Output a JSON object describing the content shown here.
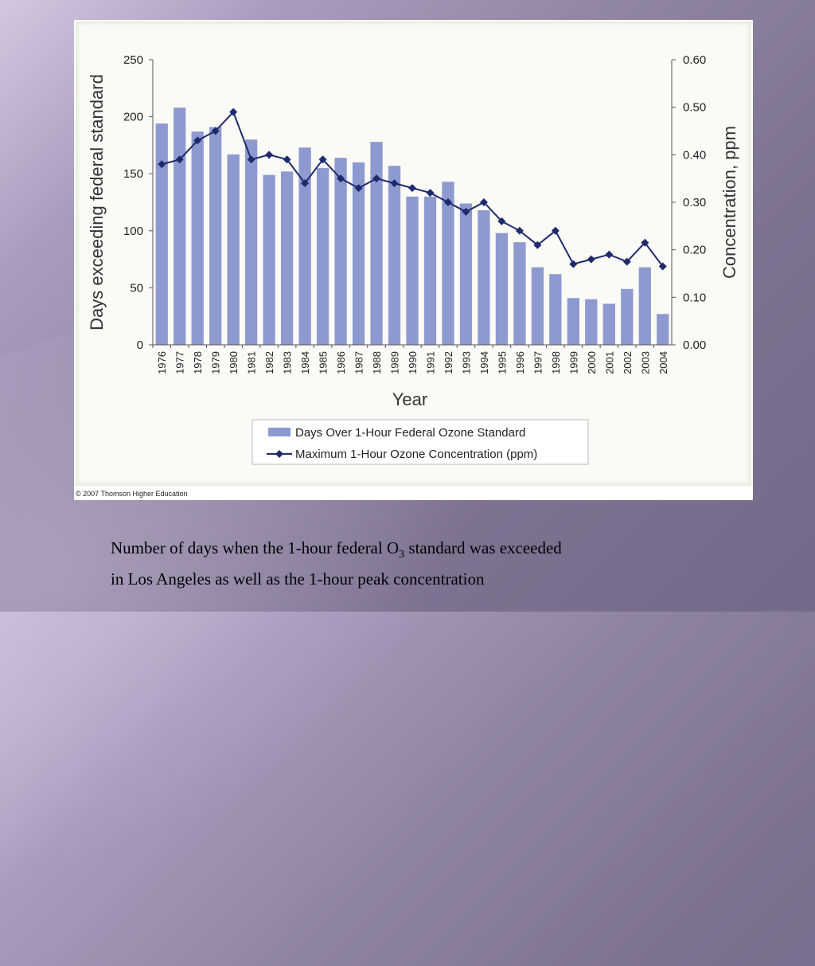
{
  "figure": {
    "copyright": "© 2007 Thomson Higher Education"
  },
  "caption": {
    "line1_before": "Number of days when the 1-hour federal O",
    "line1_sub": "3",
    "line1_after": " standard was exceeded",
    "line2": "in Los Angeles as well as the 1-hour peak concentration"
  },
  "chart_data": {
    "type": "bar",
    "title": "",
    "xlabel": "Year",
    "ylabel": "Days exceeding federal standard",
    "y2label": "Concentration, ppm",
    "categories": [
      "1976",
      "1977",
      "1978",
      "1979",
      "1980",
      "1981",
      "1982",
      "1983",
      "1984",
      "1985",
      "1986",
      "1987",
      "1988",
      "1989",
      "1990",
      "1991",
      "1992",
      "1993",
      "1994",
      "1995",
      "1996",
      "1997",
      "1998",
      "1999",
      "2000",
      "2001",
      "2002",
      "2003",
      "2004"
    ],
    "ylim": [
      0,
      250
    ],
    "yticks": [
      "0",
      "50",
      "100",
      "150",
      "200",
      "250"
    ],
    "y2lim": [
      0,
      0.6
    ],
    "y2ticks": [
      "0.00",
      "0.10",
      "0.20",
      "0.30",
      "0.40",
      "0.50",
      "0.60"
    ],
    "grid": false,
    "legend_position": "bottom",
    "colors": {
      "bar": "#8e9acf",
      "line": "#1f2a6e"
    },
    "series": [
      {
        "name": "Days Over 1-Hour Federal Ozone Standard",
        "type": "bar",
        "axis": "left",
        "values": [
          194,
          208,
          187,
          191,
          167,
          180,
          149,
          152,
          173,
          155,
          164,
          160,
          178,
          157,
          130,
          130,
          143,
          124,
          118,
          98,
          90,
          68,
          62,
          41,
          40,
          36,
          49,
          68,
          27
        ]
      },
      {
        "name": "Maximum 1-Hour Ozone Concentration (ppm)",
        "type": "line",
        "axis": "right",
        "values": [
          0.38,
          0.39,
          0.43,
          0.45,
          0.49,
          0.39,
          0.4,
          0.39,
          0.34,
          0.39,
          0.35,
          0.33,
          0.35,
          0.34,
          0.33,
          0.32,
          0.3,
          0.28,
          0.3,
          0.26,
          0.24,
          0.21,
          0.24,
          0.17,
          0.18,
          0.19,
          0.175,
          0.215,
          0.165
        ]
      }
    ]
  }
}
